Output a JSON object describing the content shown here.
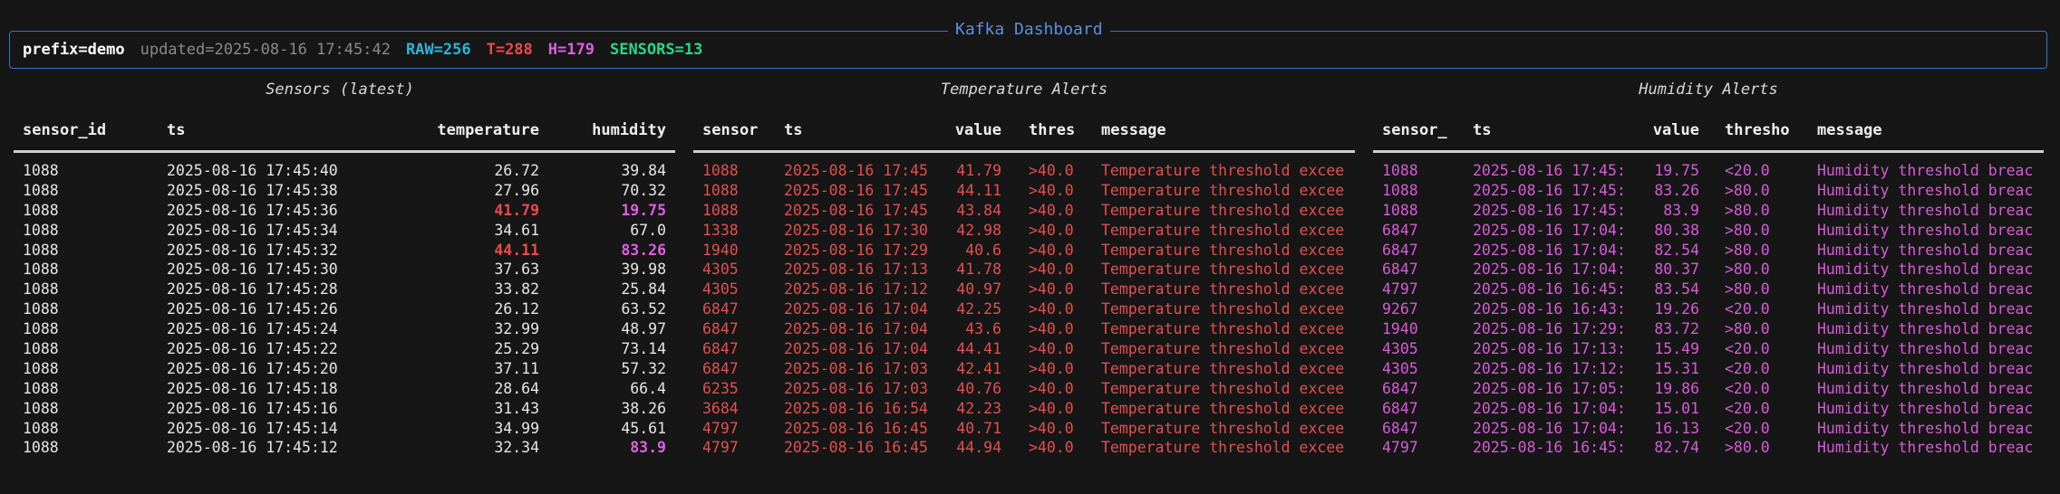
{
  "header": {
    "title": "Kafka Dashboard",
    "prefix": "prefix=demo",
    "updated": "updated=2025-08-16 17:45:42",
    "raw": "RAW=256",
    "t": "T=288",
    "h": "H=179",
    "sensors": "SENSORS=13"
  },
  "colors": {
    "background": "#161616",
    "border": "#3a6fd8",
    "raw": "#29b6d8",
    "temperature_alert": "#f0484a",
    "humidity_alert": "#de5fe0",
    "sensors_count": "#27d98a"
  },
  "sensors_panel": {
    "title": "Sensors (latest)",
    "columns": [
      "sensor_id",
      "ts",
      "temperature",
      "humidity"
    ],
    "rows": [
      {
        "sensor_id": "1088",
        "ts": "2025-08-16 17:45:40",
        "temperature": "26.72",
        "humidity": "39.84",
        "t_alert": false,
        "h_alert": false
      },
      {
        "sensor_id": "1088",
        "ts": "2025-08-16 17:45:38",
        "temperature": "27.96",
        "humidity": "70.32",
        "t_alert": false,
        "h_alert": false
      },
      {
        "sensor_id": "1088",
        "ts": "2025-08-16 17:45:36",
        "temperature": "41.79",
        "humidity": "19.75",
        "t_alert": true,
        "h_alert": true
      },
      {
        "sensor_id": "1088",
        "ts": "2025-08-16 17:45:34",
        "temperature": "34.61",
        "humidity": "67.0",
        "t_alert": false,
        "h_alert": false
      },
      {
        "sensor_id": "1088",
        "ts": "2025-08-16 17:45:32",
        "temperature": "44.11",
        "humidity": "83.26",
        "t_alert": true,
        "h_alert": true
      },
      {
        "sensor_id": "1088",
        "ts": "2025-08-16 17:45:30",
        "temperature": "37.63",
        "humidity": "39.98",
        "t_alert": false,
        "h_alert": false
      },
      {
        "sensor_id": "1088",
        "ts": "2025-08-16 17:45:28",
        "temperature": "33.82",
        "humidity": "25.84",
        "t_alert": false,
        "h_alert": false
      },
      {
        "sensor_id": "1088",
        "ts": "2025-08-16 17:45:26",
        "temperature": "26.12",
        "humidity": "63.52",
        "t_alert": false,
        "h_alert": false
      },
      {
        "sensor_id": "1088",
        "ts": "2025-08-16 17:45:24",
        "temperature": "32.99",
        "humidity": "48.97",
        "t_alert": false,
        "h_alert": false
      },
      {
        "sensor_id": "1088",
        "ts": "2025-08-16 17:45:22",
        "temperature": "25.29",
        "humidity": "73.14",
        "t_alert": false,
        "h_alert": false
      },
      {
        "sensor_id": "1088",
        "ts": "2025-08-16 17:45:20",
        "temperature": "37.11",
        "humidity": "57.32",
        "t_alert": false,
        "h_alert": false
      },
      {
        "sensor_id": "1088",
        "ts": "2025-08-16 17:45:18",
        "temperature": "28.64",
        "humidity": "66.4",
        "t_alert": false,
        "h_alert": false
      },
      {
        "sensor_id": "1088",
        "ts": "2025-08-16 17:45:16",
        "temperature": "31.43",
        "humidity": "38.26",
        "t_alert": false,
        "h_alert": false
      },
      {
        "sensor_id": "1088",
        "ts": "2025-08-16 17:45:14",
        "temperature": "34.99",
        "humidity": "45.61",
        "t_alert": false,
        "h_alert": false
      },
      {
        "sensor_id": "1088",
        "ts": "2025-08-16 17:45:12",
        "temperature": "32.34",
        "humidity": "83.9",
        "t_alert": false,
        "h_alert": true
      }
    ]
  },
  "temperature_alerts": {
    "title": "Temperature Alerts",
    "columns": [
      "sensor",
      "ts",
      "value",
      "thres",
      "message"
    ],
    "rows": [
      {
        "sensor": "1088",
        "ts": "2025-08-16 17:45",
        "value": "41.79",
        "thres": ">40.0",
        "message": "Temperature threshold excee"
      },
      {
        "sensor": "1088",
        "ts": "2025-08-16 17:45",
        "value": "44.11",
        "thres": ">40.0",
        "message": "Temperature threshold excee"
      },
      {
        "sensor": "1088",
        "ts": "2025-08-16 17:45",
        "value": "43.84",
        "thres": ">40.0",
        "message": "Temperature threshold excee"
      },
      {
        "sensor": "1338",
        "ts": "2025-08-16 17:30",
        "value": "42.98",
        "thres": ">40.0",
        "message": "Temperature threshold excee"
      },
      {
        "sensor": "1940",
        "ts": "2025-08-16 17:29",
        "value": "40.6",
        "thres": ">40.0",
        "message": "Temperature threshold excee"
      },
      {
        "sensor": "4305",
        "ts": "2025-08-16 17:13",
        "value": "41.78",
        "thres": ">40.0",
        "message": "Temperature threshold excee"
      },
      {
        "sensor": "4305",
        "ts": "2025-08-16 17:12",
        "value": "40.97",
        "thres": ">40.0",
        "message": "Temperature threshold excee"
      },
      {
        "sensor": "6847",
        "ts": "2025-08-16 17:04",
        "value": "42.25",
        "thres": ">40.0",
        "message": "Temperature threshold excee"
      },
      {
        "sensor": "6847",
        "ts": "2025-08-16 17:04",
        "value": "43.6",
        "thres": ">40.0",
        "message": "Temperature threshold excee"
      },
      {
        "sensor": "6847",
        "ts": "2025-08-16 17:04",
        "value": "44.41",
        "thres": ">40.0",
        "message": "Temperature threshold excee"
      },
      {
        "sensor": "6847",
        "ts": "2025-08-16 17:03",
        "value": "42.41",
        "thres": ">40.0",
        "message": "Temperature threshold excee"
      },
      {
        "sensor": "6235",
        "ts": "2025-08-16 17:03",
        "value": "40.76",
        "thres": ">40.0",
        "message": "Temperature threshold excee"
      },
      {
        "sensor": "3684",
        "ts": "2025-08-16 16:54",
        "value": "42.23",
        "thres": ">40.0",
        "message": "Temperature threshold excee"
      },
      {
        "sensor": "4797",
        "ts": "2025-08-16 16:45",
        "value": "40.71",
        "thres": ">40.0",
        "message": "Temperature threshold excee"
      },
      {
        "sensor": "4797",
        "ts": "2025-08-16 16:45",
        "value": "44.94",
        "thres": ">40.0",
        "message": "Temperature threshold excee"
      }
    ]
  },
  "humidity_alerts": {
    "title": "Humidity Alerts",
    "columns": [
      "sensor_",
      "ts",
      "value",
      "thresho",
      "message"
    ],
    "rows": [
      {
        "sensor": "1088",
        "ts": "2025-08-16 17:45:",
        "value": "19.75",
        "thres": "<20.0",
        "message": "Humidity threshold breac"
      },
      {
        "sensor": "1088",
        "ts": "2025-08-16 17:45:",
        "value": "83.26",
        "thres": ">80.0",
        "message": "Humidity threshold breac"
      },
      {
        "sensor": "1088",
        "ts": "2025-08-16 17:45:",
        "value": "83.9",
        "thres": ">80.0",
        "message": "Humidity threshold breac"
      },
      {
        "sensor": "6847",
        "ts": "2025-08-16 17:04:",
        "value": "80.38",
        "thres": ">80.0",
        "message": "Humidity threshold breac"
      },
      {
        "sensor": "6847",
        "ts": "2025-08-16 17:04:",
        "value": "82.54",
        "thres": ">80.0",
        "message": "Humidity threshold breac"
      },
      {
        "sensor": "6847",
        "ts": "2025-08-16 17:04:",
        "value": "80.37",
        "thres": ">80.0",
        "message": "Humidity threshold breac"
      },
      {
        "sensor": "4797",
        "ts": "2025-08-16 16:45:",
        "value": "83.54",
        "thres": ">80.0",
        "message": "Humidity threshold breac"
      },
      {
        "sensor": "9267",
        "ts": "2025-08-16 16:43:",
        "value": "19.26",
        "thres": "<20.0",
        "message": "Humidity threshold breac"
      },
      {
        "sensor": "1940",
        "ts": "2025-08-16 17:29:",
        "value": "83.72",
        "thres": ">80.0",
        "message": "Humidity threshold breac"
      },
      {
        "sensor": "4305",
        "ts": "2025-08-16 17:13:",
        "value": "15.49",
        "thres": "<20.0",
        "message": "Humidity threshold breac"
      },
      {
        "sensor": "4305",
        "ts": "2025-08-16 17:12:",
        "value": "15.31",
        "thres": "<20.0",
        "message": "Humidity threshold breac"
      },
      {
        "sensor": "6847",
        "ts": "2025-08-16 17:05:",
        "value": "19.86",
        "thres": "<20.0",
        "message": "Humidity threshold breac"
      },
      {
        "sensor": "6847",
        "ts": "2025-08-16 17:04:",
        "value": "15.01",
        "thres": "<20.0",
        "message": "Humidity threshold breac"
      },
      {
        "sensor": "6847",
        "ts": "2025-08-16 17:04:",
        "value": "16.13",
        "thres": "<20.0",
        "message": "Humidity threshold breac"
      },
      {
        "sensor": "4797",
        "ts": "2025-08-16 16:45:",
        "value": "82.74",
        "thres": ">80.0",
        "message": "Humidity threshold breac"
      }
    ]
  }
}
